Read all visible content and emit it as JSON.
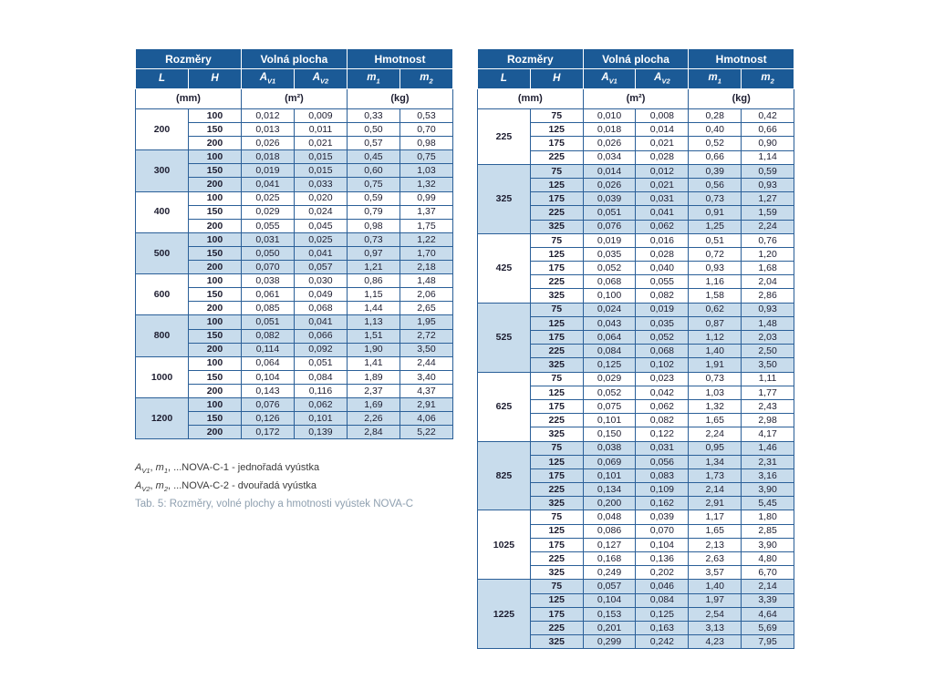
{
  "colors": {
    "header_bg": "#1b5a96",
    "shade_bg": "#c8dcec",
    "border": "#2a5f98",
    "text": "#1d1d30",
    "caption": "#8fa0b0",
    "note_text": "#3a3a3a"
  },
  "headers": {
    "rozmery": "Rozměry",
    "volna_plocha": "Volná plocha",
    "hmotnost": "Hmotnost",
    "L": "L",
    "H": "H",
    "av1": {
      "base": "A",
      "sub": "V1"
    },
    "av2": {
      "base": "A",
      "sub": "V2"
    },
    "m1": {
      "base": "m",
      "sub": "1"
    },
    "m2": {
      "base": "m",
      "sub": "2"
    },
    "unit_mm": "(mm)",
    "unit_m2": "(m²)",
    "unit_kg": "(kg)"
  },
  "left_table": {
    "groups": [
      {
        "L": "200",
        "shaded": false,
        "rows": [
          [
            "100",
            "0,012",
            "0,009",
            "0,33",
            "0,53"
          ],
          [
            "150",
            "0,013",
            "0,011",
            "0,50",
            "0,70"
          ],
          [
            "200",
            "0,026",
            "0,021",
            "0,57",
            "0,98"
          ]
        ]
      },
      {
        "L": "300",
        "shaded": true,
        "rows": [
          [
            "100",
            "0,018",
            "0,015",
            "0,45",
            "0,75"
          ],
          [
            "150",
            "0,019",
            "0,015",
            "0,60",
            "1,03"
          ],
          [
            "200",
            "0,041",
            "0,033",
            "0,75",
            "1,32"
          ]
        ]
      },
      {
        "L": "400",
        "shaded": false,
        "rows": [
          [
            "100",
            "0,025",
            "0,020",
            "0,59",
            "0,99"
          ],
          [
            "150",
            "0,029",
            "0,024",
            "0,79",
            "1,37"
          ],
          [
            "200",
            "0,055",
            "0,045",
            "0,98",
            "1,75"
          ]
        ]
      },
      {
        "L": "500",
        "shaded": true,
        "rows": [
          [
            "100",
            "0,031",
            "0,025",
            "0,73",
            "1,22"
          ],
          [
            "150",
            "0,050",
            "0,041",
            "0,97",
            "1,70"
          ],
          [
            "200",
            "0,070",
            "0,057",
            "1,21",
            "2,18"
          ]
        ]
      },
      {
        "L": "600",
        "shaded": false,
        "rows": [
          [
            "100",
            "0,038",
            "0,030",
            "0,86",
            "1,48"
          ],
          [
            "150",
            "0,061",
            "0,049",
            "1,15",
            "2,06"
          ],
          [
            "200",
            "0,085",
            "0,068",
            "1,44",
            "2,65"
          ]
        ]
      },
      {
        "L": "800",
        "shaded": true,
        "rows": [
          [
            "100",
            "0,051",
            "0,041",
            "1,13",
            "1,95"
          ],
          [
            "150",
            "0,082",
            "0,066",
            "1,51",
            "2,72"
          ],
          [
            "200",
            "0,114",
            "0,092",
            "1,90",
            "3,50"
          ]
        ]
      },
      {
        "L": "1000",
        "shaded": false,
        "rows": [
          [
            "100",
            "0,064",
            "0,051",
            "1,41",
            "2,44"
          ],
          [
            "150",
            "0,104",
            "0,084",
            "1,89",
            "3,40"
          ],
          [
            "200",
            "0,143",
            "0,116",
            "2,37",
            "4,37"
          ]
        ]
      },
      {
        "L": "1200",
        "shaded": true,
        "rows": [
          [
            "100",
            "0,076",
            "0,062",
            "1,69",
            "2,91"
          ],
          [
            "150",
            "0,126",
            "0,101",
            "2,26",
            "4,06"
          ],
          [
            "200",
            "0,172",
            "0,139",
            "2,84",
            "5,22"
          ]
        ]
      }
    ]
  },
  "right_table": {
    "groups": [
      {
        "L": "225",
        "shaded": false,
        "rows": [
          [
            "75",
            "0,010",
            "0,008",
            "0,28",
            "0,42"
          ],
          [
            "125",
            "0,018",
            "0,014",
            "0,40",
            "0,66"
          ],
          [
            "175",
            "0,026",
            "0,021",
            "0,52",
            "0,90"
          ],
          [
            "225",
            "0,034",
            "0,028",
            "0,66",
            "1,14"
          ]
        ]
      },
      {
        "L": "325",
        "shaded": true,
        "rows": [
          [
            "75",
            "0,014",
            "0,012",
            "0,39",
            "0,59"
          ],
          [
            "125",
            "0,026",
            "0,021",
            "0,56",
            "0,93"
          ],
          [
            "175",
            "0,039",
            "0,031",
            "0,73",
            "1,27"
          ],
          [
            "225",
            "0,051",
            "0,041",
            "0,91",
            "1,59"
          ],
          [
            "325",
            "0,076",
            "0,062",
            "1,25",
            "2,24"
          ]
        ]
      },
      {
        "L": "425",
        "shaded": false,
        "rows": [
          [
            "75",
            "0,019",
            "0,016",
            "0,51",
            "0,76"
          ],
          [
            "125",
            "0,035",
            "0,028",
            "0,72",
            "1,20"
          ],
          [
            "175",
            "0,052",
            "0,040",
            "0,93",
            "1,68"
          ],
          [
            "225",
            "0,068",
            "0,055",
            "1,16",
            "2,04"
          ],
          [
            "325",
            "0,100",
            "0,082",
            "1,58",
            "2,86"
          ]
        ]
      },
      {
        "L": "525",
        "shaded": true,
        "rows": [
          [
            "75",
            "0,024",
            "0,019",
            "0,62",
            "0,93"
          ],
          [
            "125",
            "0,043",
            "0,035",
            "0,87",
            "1,48"
          ],
          [
            "175",
            "0,064",
            "0,052",
            "1,12",
            "2,03"
          ],
          [
            "225",
            "0,084",
            "0,068",
            "1,40",
            "2,50"
          ],
          [
            "325",
            "0,125",
            "0,102",
            "1,91",
            "3,50"
          ]
        ]
      },
      {
        "L": "625",
        "shaded": false,
        "rows": [
          [
            "75",
            "0,029",
            "0,023",
            "0,73",
            "1,11"
          ],
          [
            "125",
            "0,052",
            "0,042",
            "1,03",
            "1,77"
          ],
          [
            "175",
            "0,075",
            "0,062",
            "1,32",
            "2,43"
          ],
          [
            "225",
            "0,101",
            "0,082",
            "1,65",
            "2,98"
          ],
          [
            "325",
            "0,150",
            "0,122",
            "2,24",
            "4,17"
          ]
        ]
      },
      {
        "L": "825",
        "shaded": true,
        "rows": [
          [
            "75",
            "0,038",
            "0,031",
            "0,95",
            "1,46"
          ],
          [
            "125",
            "0,069",
            "0,056",
            "1,34",
            "2,31"
          ],
          [
            "175",
            "0,101",
            "0,083",
            "1,73",
            "3,16"
          ],
          [
            "225",
            "0,134",
            "0,109",
            "2,14",
            "3,90"
          ],
          [
            "325",
            "0,200",
            "0,162",
            "2,91",
            "5,45"
          ]
        ]
      },
      {
        "L": "1025",
        "shaded": false,
        "rows": [
          [
            "75",
            "0,048",
            "0,039",
            "1,17",
            "1,80"
          ],
          [
            "125",
            "0,086",
            "0,070",
            "1,65",
            "2,85"
          ],
          [
            "175",
            "0,127",
            "0,104",
            "2,13",
            "3,90"
          ],
          [
            "225",
            "0,168",
            "0,136",
            "2,63",
            "4,80"
          ],
          [
            "325",
            "0,249",
            "0,202",
            "3,57",
            "6,70"
          ]
        ]
      },
      {
        "L": "1225",
        "shaded": true,
        "rows": [
          [
            "75",
            "0,057",
            "0,046",
            "1,40",
            "2,14"
          ],
          [
            "125",
            "0,104",
            "0,084",
            "1,97",
            "3,39"
          ],
          [
            "175",
            "0,153",
            "0,125",
            "2,54",
            "4,64"
          ],
          [
            "225",
            "0,201",
            "0,163",
            "3,13",
            "5,69"
          ],
          [
            "325",
            "0,299",
            "0,242",
            "4,23",
            "7,95"
          ]
        ]
      }
    ]
  },
  "notes": [
    {
      "s1": "A",
      "s1sub": "V1",
      "mid": ", ",
      "s2": "m",
      "s2sub": "1",
      "rest": ", ...NOVA-C-1 - jednořadá vyústka"
    },
    {
      "s1": "A",
      "s1sub": "V2",
      "mid": ", ",
      "s2": "m",
      "s2sub": "2",
      "rest": ", ...NOVA-C-2 - dvouřadá vyústka"
    }
  ],
  "caption": "Tab. 5: Rozměry, volné plochy a hmotnosti vyústek NOVA-C"
}
